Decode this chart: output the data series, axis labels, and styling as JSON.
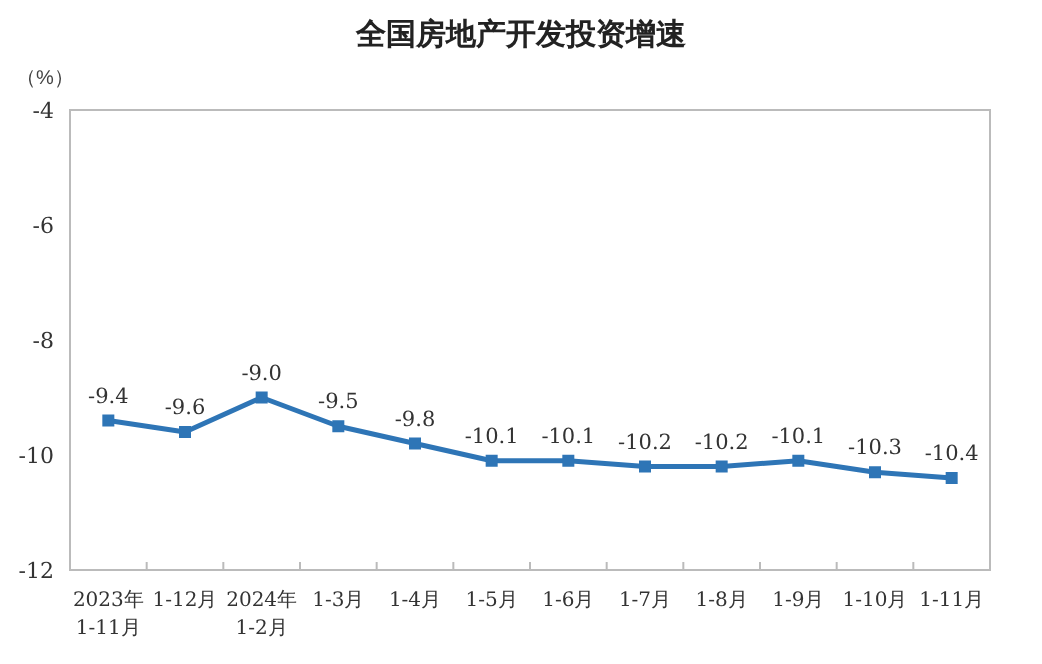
{
  "chart_data": {
    "type": "line",
    "title": "全国房地产开发投资增速",
    "ylabel": "（%）",
    "categories": [
      "2023年\n1-11月",
      "1-12月",
      "2024年\n1-2月",
      "1-3月",
      "1-4月",
      "1-5月",
      "1-6月",
      "1-7月",
      "1-8月",
      "1-9月",
      "1-10月",
      "1-11月"
    ],
    "series": [
      {
        "color": "#2e75b6",
        "values": [
          -9.4,
          -9.6,
          -9.0,
          -9.5,
          -9.8,
          -10.1,
          -10.1,
          -10.2,
          -10.2,
          -10.1,
          -10.3,
          -10.4
        ],
        "value_labels": [
          "-9.4",
          "-9.6",
          "-9.0",
          "-9.5",
          "-9.8",
          "-10.1",
          "-10.1",
          "-10.2",
          "-10.2",
          "-10.1",
          "-10.3",
          "-10.4"
        ]
      }
    ],
    "ylim": [
      -12,
      -4
    ],
    "yticks": [
      -12,
      -10,
      -8,
      -6,
      -4
    ],
    "marker": "square",
    "grid": false
  }
}
